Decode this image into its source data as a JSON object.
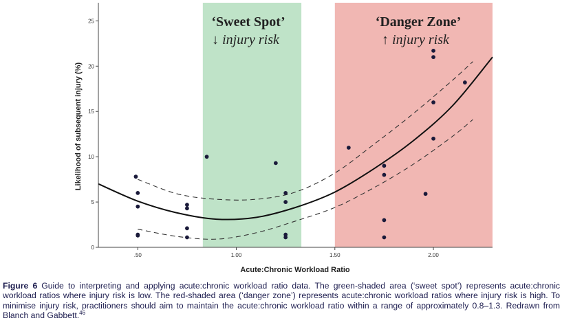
{
  "chart_data": {
    "type": "scatter",
    "xlabel": "Acute:Chronic Workload Ratio",
    "ylabel": "Likelihood of subsequent injury (%)",
    "xlim": [
      0.3,
      2.3
    ],
    "ylim": [
      0,
      27
    ],
    "x_tick_labels": [
      ".50",
      "1.00",
      "1.50",
      "2.00"
    ],
    "x_ticks": [
      0.5,
      1.0,
      1.5,
      2.0
    ],
    "y_ticks": [
      0,
      5,
      10,
      15,
      20,
      25
    ],
    "zones": [
      {
        "name": "sweet-spot",
        "title": "‘Sweet Spot’",
        "subtitle": "↓ injury risk",
        "x_range": [
          0.83,
          1.33
        ],
        "color": "#bfe3c8"
      },
      {
        "name": "danger-zone",
        "title": "‘Danger Zone’",
        "subtitle": "↑ injury risk",
        "x_range": [
          1.5,
          2.3
        ],
        "color": "#f1b7b3"
      }
    ],
    "series": [
      {
        "points": [
          [
            0.49,
            7.8
          ],
          [
            0.5,
            6.0
          ],
          [
            0.5,
            4.5
          ],
          [
            0.5,
            1.4
          ],
          [
            0.5,
            1.3
          ],
          [
            0.75,
            4.7
          ],
          [
            0.75,
            4.3
          ],
          [
            0.75,
            2.1
          ],
          [
            0.75,
            1.1
          ],
          [
            0.85,
            10.0
          ],
          [
            1.2,
            9.3
          ],
          [
            1.25,
            6.0
          ],
          [
            1.25,
            5.0
          ],
          [
            1.25,
            1.4
          ],
          [
            1.25,
            1.1
          ],
          [
            1.57,
            11.0
          ],
          [
            1.75,
            9.0
          ],
          [
            1.75,
            8.0
          ],
          [
            1.75,
            3.0
          ],
          [
            1.75,
            1.1
          ],
          [
            1.96,
            5.9
          ],
          [
            2.0,
            21.7
          ],
          [
            2.0,
            21.0
          ],
          [
            2.0,
            16.0
          ],
          [
            2.0,
            12.0
          ],
          [
            2.16,
            18.2
          ]
        ]
      }
    ],
    "fit_curve": [
      [
        0.3,
        7.0
      ],
      [
        0.5,
        5.1
      ],
      [
        0.7,
        3.8
      ],
      [
        0.9,
        3.1
      ],
      [
        1.1,
        3.3
      ],
      [
        1.3,
        4.4
      ],
      [
        1.5,
        6.1
      ],
      [
        1.7,
        8.7
      ],
      [
        1.9,
        11.8
      ],
      [
        2.1,
        15.7
      ],
      [
        2.3,
        21.0
      ]
    ],
    "ci_upper": [
      [
        0.5,
        7.5
      ],
      [
        0.7,
        5.9
      ],
      [
        0.9,
        5.3
      ],
      [
        1.1,
        5.3
      ],
      [
        1.3,
        6.1
      ],
      [
        1.5,
        8.2
      ],
      [
        1.7,
        11.4
      ],
      [
        1.9,
        14.8
      ],
      [
        2.1,
        18.5
      ],
      [
        2.2,
        20.5
      ]
    ],
    "ci_lower": [
      [
        0.5,
        2.0
      ],
      [
        0.7,
        1.2
      ],
      [
        0.9,
        0.9
      ],
      [
        1.1,
        1.6
      ],
      [
        1.3,
        2.9
      ],
      [
        1.5,
        4.4
      ],
      [
        1.7,
        6.6
      ],
      [
        1.9,
        9.2
      ],
      [
        2.1,
        12.3
      ],
      [
        2.2,
        14.1
      ]
    ],
    "grid": false,
    "legend": "none"
  },
  "caption": {
    "label": "Figure 6",
    "text": "Guide to interpreting and applying acute:chronic workload ratio data. The green-shaded area (‘sweet spot’) represents acute:chronic workload ratios where injury risk is low. The red-shaded area (‘danger zone’) represents acute:chronic workload ratios where injury risk is high. To minimise injury risk, practitioners should aim to maintain the acute:chronic workload ratio within a range of approximately 0.8–1.3. Redrawn from Blanch and Gabbett.",
    "ref": "46"
  },
  "colors": {
    "sweet_zone": "#bfe3c8",
    "danger_zone": "#f1b7b3",
    "points": "#1a1a3a",
    "curve": "#111111"
  }
}
